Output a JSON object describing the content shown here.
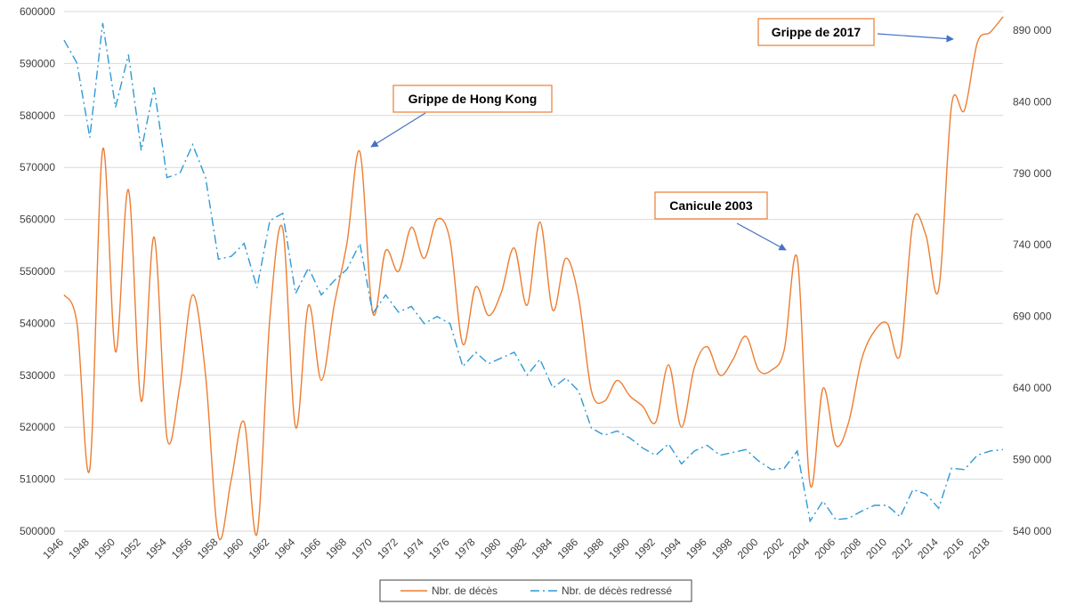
{
  "chart_data": {
    "type": "line",
    "x": [
      1946,
      1947,
      1948,
      1949,
      1950,
      1951,
      1952,
      1953,
      1954,
      1955,
      1956,
      1957,
      1958,
      1959,
      1960,
      1961,
      1962,
      1963,
      1964,
      1965,
      1966,
      1967,
      1968,
      1969,
      1970,
      1971,
      1972,
      1973,
      1974,
      1975,
      1976,
      1977,
      1978,
      1979,
      1980,
      1981,
      1982,
      1983,
      1984,
      1985,
      1986,
      1987,
      1988,
      1989,
      1990,
      1991,
      1992,
      1993,
      1994,
      1995,
      1996,
      1997,
      1998,
      1999,
      2000,
      2001,
      2002,
      2003,
      2004,
      2005,
      2006,
      2007,
      2008,
      2009,
      2010,
      2011,
      2012,
      2013,
      2014,
      2015,
      2016,
      2017,
      2018,
      2019
    ],
    "x_tick_labels": [
      "1946",
      "1948",
      "1950",
      "1952",
      "1954",
      "1956",
      "1958",
      "1960",
      "1962",
      "1964",
      "1966",
      "1968",
      "1970",
      "1972",
      "1974",
      "1976",
      "1978",
      "1980",
      "1982",
      "1984",
      "1986",
      "1988",
      "1990",
      "1992",
      "1994",
      "1996",
      "1998",
      "2000",
      "2002",
      "2004",
      "2006",
      "2008",
      "2010",
      "2012",
      "2014",
      "2016",
      "2018"
    ],
    "series": [
      {
        "name": "Nbr. de décès",
        "axis": "left",
        "color": "#ed7d31",
        "style": "solid",
        "smooth": true,
        "values": [
          545500,
          540000,
          512000,
          573500,
          534500,
          565700,
          525000,
          556600,
          518000,
          528000,
          545500,
          530000,
          499000,
          510000,
          521000,
          499500,
          541000,
          558200,
          520000,
          543500,
          529000,
          543500,
          555500,
          573000,
          542000,
          554000,
          550000,
          558500,
          552500,
          560000,
          556000,
          536000,
          547000,
          541500,
          546000,
          554500,
          543500,
          559500,
          542500,
          552500,
          545000,
          527000,
          525000,
          529000,
          526000,
          524000,
          521000,
          532000,
          520000,
          531500,
          535500,
          530000,
          533000,
          537500,
          531000,
          531000,
          535000,
          552500,
          509000,
          527500,
          516500,
          521000,
          533000,
          538500,
          540000,
          534000,
          559500,
          557000,
          546500,
          582000,
          581000,
          594000,
          596000,
          599000
        ]
      },
      {
        "name": "Nbr. de décès redressé",
        "axis": "right",
        "color": "#2e9ad6",
        "style": "dashdot",
        "smooth": false,
        "values": [
          883000,
          867000,
          815000,
          895000,
          836000,
          873000,
          806000,
          850000,
          787000,
          790000,
          810000,
          787000,
          730000,
          732000,
          741000,
          710000,
          757000,
          762000,
          706000,
          724000,
          705000,
          715000,
          723000,
          741000,
          692000,
          705000,
          693000,
          697000,
          685000,
          690000,
          685000,
          655000,
          665000,
          657000,
          661000,
          665000,
          649000,
          660000,
          640000,
          647000,
          638000,
          612000,
          607000,
          610000,
          605000,
          598000,
          593000,
          601000,
          587000,
          596000,
          600000,
          593000,
          595000,
          597000,
          589000,
          583000,
          584000,
          596000,
          547000,
          561000,
          548000,
          549000,
          554000,
          558000,
          558000,
          550000,
          569000,
          566000,
          556000,
          584000,
          583000,
          593000,
          596000,
          597000
        ]
      }
    ],
    "y_left": {
      "min": 500000,
      "max": 600000,
      "step": 10000,
      "tick_labels": [
        "500000",
        "510000",
        "520000",
        "530000",
        "540000",
        "550000",
        "560000",
        "570000",
        "580000",
        "590000",
        "600000"
      ]
    },
    "y_right": {
      "min": 540000,
      "max": 903000,
      "ticks": [
        540000,
        590000,
        640000,
        690000,
        740000,
        790000,
        840000,
        890000
      ],
      "tick_labels": [
        "540 000",
        "590 000",
        "640 000",
        "690 000",
        "740 000",
        "790 000",
        "840 000",
        "890 000"
      ]
    },
    "grid": "horizontal",
    "legend": {
      "position": "bottom",
      "entries": [
        "Nbr. de décès",
        "Nbr. de décès redressé"
      ]
    },
    "annotations": [
      {
        "text": "Grippe de Hong Kong",
        "target_year": 1968.8,
        "target_value": 571000
      },
      {
        "text": "Canicule 2003",
        "target_year": 2002.7,
        "target_value": 554000
      },
      {
        "text": "Grippe de 2017",
        "target_year": 2015.2,
        "target_value": 597500
      }
    ],
    "colors": {
      "grid": "#d9d9d9",
      "annotation_border": "#ed7d31",
      "arrow": "#4472c4",
      "axis_text": "#404040"
    }
  }
}
